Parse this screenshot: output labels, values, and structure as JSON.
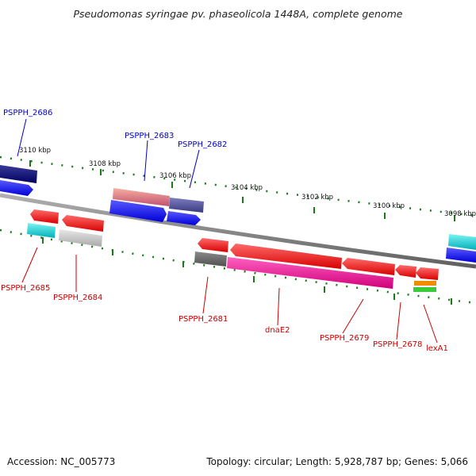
{
  "title": "Pseudomonas syringae pv. phaseolicola 1448A, complete genome",
  "footer": {
    "accession": "Accession: NC_005773",
    "summary": "Topology: circular; Length: 5,928,787 bp; Genes: 5,066"
  },
  "scale_labels": [
    "3110 kbp",
    "3108 kbp",
    "3106 kbp",
    "3104 kbp",
    "3102 kbp",
    "3100 kbp",
    "3098 kbp"
  ],
  "genes_top": [
    "PSPPH_2686",
    "PSPPH_2683",
    "PSPPH_2682"
  ],
  "genes_bottom": [
    "PSPPH_2685",
    "PSPPH_2684",
    "PSPPH_2681",
    "dnaE2",
    "PSPPH_2679",
    "PSPPH_2678",
    "lexA1"
  ],
  "colors": {
    "forward_label": "#0000cc",
    "reverse_label": "#cc0000",
    "backbone": "#808080",
    "tick": "#1a7a1a"
  }
}
